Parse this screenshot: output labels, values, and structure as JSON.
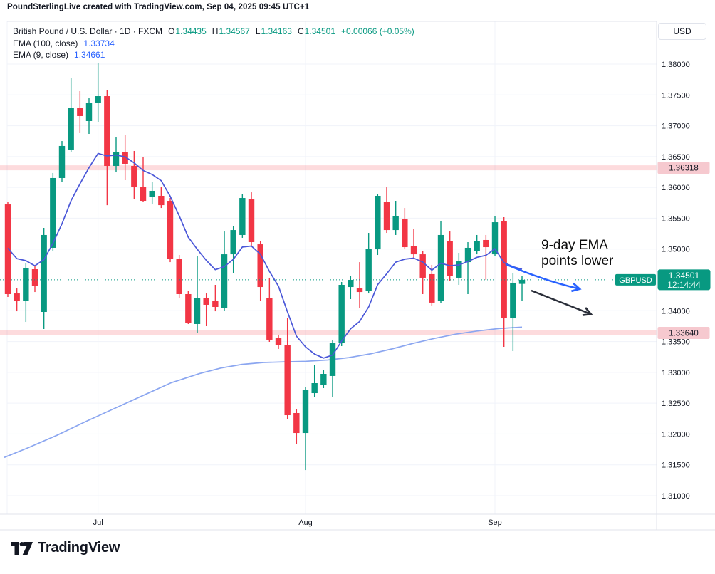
{
  "header": {
    "text": "PoundSterlingLive created with TradingView.com, Sep 04, 2025 09:45 UTC+1"
  },
  "legend": {
    "title": "British Pound / U.S. Dollar · 1D · FXCM",
    "o_label": "O",
    "o": "1.34435",
    "h_label": "H",
    "h": "1.34567",
    "l_label": "L",
    "l": "1.34163",
    "c_label": "C",
    "c": "1.34501",
    "change": "+0.00066 (+0.05%)",
    "ema100_label": "EMA (100, close)",
    "ema100_value": "1.33734",
    "ema9_label": "EMA (9, close)",
    "ema9_value": "1.34661"
  },
  "annotation": {
    "line1": "9-day EMA",
    "line2": "points lower"
  },
  "price_axis": {
    "currency": "USD",
    "ticks": [
      {
        "price": 1.38,
        "label": "1.38000"
      },
      {
        "price": 1.375,
        "label": "1.37500"
      },
      {
        "price": 1.37,
        "label": "1.37000"
      },
      {
        "price": 1.365,
        "label": "1.36500"
      },
      {
        "price": 1.36,
        "label": "1.36000"
      },
      {
        "price": 1.355,
        "label": "1.35500"
      },
      {
        "price": 1.35,
        "label": "1.35000"
      },
      {
        "price": 1.34,
        "label": "1.34000"
      },
      {
        "price": 1.335,
        "label": "1.33500"
      },
      {
        "price": 1.33,
        "label": "1.33000"
      },
      {
        "price": 1.325,
        "label": "1.32500"
      },
      {
        "price": 1.32,
        "label": "1.32000"
      },
      {
        "price": 1.315,
        "label": "1.31500"
      },
      {
        "price": 1.31,
        "label": "1.31000"
      }
    ],
    "level_tags": [
      {
        "price": 1.36318,
        "label": "1.36318"
      },
      {
        "price": 1.3364,
        "label": "1.33640"
      }
    ],
    "last_price_tag": {
      "symbol": "GBPUSD",
      "price_label": "1.34501",
      "countdown": "12:14:44"
    }
  },
  "time_axis": {
    "labels": [
      {
        "text": "Jul",
        "candle_index": 10
      },
      {
        "text": "Aug",
        "candle_index": 33
      },
      {
        "text": "Sep",
        "candle_index": 54
      }
    ]
  },
  "footer": {
    "brand": "TradingView"
  },
  "chart_data": {
    "type": "candlestick",
    "symbol": "GBPUSD",
    "interval": "1D",
    "title": "British Pound / U.S. Dollar",
    "y_axis": {
      "min": 1.31,
      "max": 1.38,
      "tick_step": 0.005
    },
    "last_price": 1.34501,
    "levels": [
      1.36318,
      1.3364
    ],
    "candles": [
      [
        1.35724,
        1.3577,
        1.34223,
        1.34269
      ],
      [
        1.3428,
        1.34361,
        1.33991,
        1.34165
      ],
      [
        1.34165,
        1.34766,
        1.33818,
        1.34685
      ],
      [
        1.34673,
        1.34731,
        1.34303,
        1.34396
      ],
      [
        1.3398,
        1.35343,
        1.33703,
        1.35228
      ],
      [
        1.3502,
        1.36233,
        1.34973,
        1.36152
      ],
      [
        1.36152,
        1.36752,
        1.36094,
        1.36672
      ],
      [
        1.36614,
        1.37769,
        1.36579,
        1.37284
      ],
      [
        1.37284,
        1.37561,
        1.3688,
        1.37157
      ],
      [
        1.37076,
        1.37445,
        1.36868,
        1.37365
      ],
      [
        1.37365,
        1.38023,
        1.37053,
        1.3748
      ],
      [
        1.3748,
        1.37572,
        1.35712,
        1.36348
      ],
      [
        1.36348,
        1.3681,
        1.36244,
        1.36579
      ],
      [
        1.36579,
        1.36845,
        1.36117,
        1.36383
      ],
      [
        1.36348,
        1.36591,
        1.35805,
        1.36002
      ],
      [
        1.36013,
        1.36498,
        1.3577,
        1.35782
      ],
      [
        1.3584,
        1.36094,
        1.35724,
        1.35944
      ],
      [
        1.35863,
        1.36013,
        1.35666,
        1.35712
      ],
      [
        1.35782,
        1.35828,
        1.34788,
        1.34846
      ],
      [
        1.34846,
        1.34904,
        1.34211,
        1.34269
      ],
      [
        1.34269,
        1.34326,
        1.33784,
        1.33807
      ],
      [
        1.33784,
        1.34881,
        1.33645,
        1.34211
      ],
      [
        1.34211,
        1.3428,
        1.33749,
        1.34096
      ],
      [
        1.34154,
        1.34419,
        1.33991,
        1.34061
      ],
      [
        1.34049,
        1.35285,
        1.34003,
        1.34915
      ],
      [
        1.34915,
        1.35377,
        1.34615,
        1.35308
      ],
      [
        1.35228,
        1.35886,
        1.35182,
        1.35828
      ],
      [
        1.35805,
        1.3592,
        1.35054,
        1.35112
      ],
      [
        1.35077,
        1.35135,
        1.34165,
        1.34384
      ],
      [
        1.34211,
        1.34535,
        1.33495,
        1.3353
      ],
      [
        1.33553,
        1.33611,
        1.3338,
        1.33438
      ],
      [
        1.33438,
        1.33876,
        1.32248,
        1.32305
      ],
      [
        1.3234,
        1.32398,
        1.31843,
        1.32016
      ],
      [
        1.32016,
        1.32767,
        1.31415,
        1.32721
      ],
      [
        1.32663,
        1.33114,
        1.32605,
        1.32825
      ],
      [
        1.32802,
        1.33033,
        1.32744,
        1.32975
      ],
      [
        1.32941,
        1.33518,
        1.32605,
        1.33472
      ],
      [
        1.33472,
        1.34465,
        1.33426,
        1.34419
      ],
      [
        1.34384,
        1.34558,
        1.34188,
        1.345
      ],
      [
        1.34361,
        1.34788,
        1.34038,
        1.34303
      ],
      [
        1.34326,
        1.35262,
        1.3428,
        1.35008
      ],
      [
        1.34996,
        1.35886,
        1.34904,
        1.35863
      ],
      [
        1.3577,
        1.36001,
        1.35262,
        1.35308
      ],
      [
        1.35308,
        1.35782,
        1.35228,
        1.35539
      ],
      [
        1.35493,
        1.35666,
        1.34996,
        1.35031
      ],
      [
        1.35054,
        1.3532,
        1.34846,
        1.34915
      ],
      [
        1.34915,
        1.34973,
        1.34269,
        1.34535
      ],
      [
        1.34593,
        1.34743,
        1.34073,
        1.34131
      ],
      [
        1.34154,
        1.35459,
        1.34119,
        1.35228
      ],
      [
        1.35135,
        1.35285,
        1.34477,
        1.34558
      ],
      [
        1.34535,
        1.34939,
        1.34419,
        1.348
      ],
      [
        1.34788,
        1.35112,
        1.34269,
        1.3502
      ],
      [
        1.34962,
        1.35228,
        1.34915,
        1.35135
      ],
      [
        1.35147,
        1.35228,
        1.345,
        1.35031
      ],
      [
        1.34915,
        1.35528,
        1.34881,
        1.35435
      ],
      [
        1.35447,
        1.35516,
        1.33414,
        1.33876
      ],
      [
        1.33876,
        1.34615,
        1.33345,
        1.34454
      ],
      [
        1.34435,
        1.34567,
        1.34163,
        1.34501
      ]
    ],
    "ema9": {
      "period": 9,
      "seed": 1.352,
      "value": 1.34661
    },
    "ema100": {
      "period": 100,
      "value": 1.33734,
      "path": [
        [
          6,
          1.3162
        ],
        [
          40,
          1.3178
        ],
        [
          80,
          1.3198
        ],
        [
          120,
          1.322
        ],
        [
          160,
          1.3241
        ],
        [
          200,
          1.3262
        ],
        [
          240,
          1.3283
        ],
        [
          280,
          1.3298
        ],
        [
          310,
          1.3307
        ],
        [
          340,
          1.3313
        ],
        [
          370,
          1.3316
        ],
        [
          400,
          1.3317
        ],
        [
          430,
          1.3318
        ],
        [
          460,
          1.332
        ],
        [
          490,
          1.3324
        ],
        [
          520,
          1.333
        ],
        [
          550,
          1.3338
        ],
        [
          580,
          1.3347
        ],
        [
          610,
          1.3355
        ],
        [
          640,
          1.3362
        ],
        [
          670,
          1.3367
        ],
        [
          700,
          1.3371
        ],
        [
          733,
          1.33734
        ]
      ]
    },
    "drawings": {
      "blue_arrow": {
        "path": [
          [
            710,
            371
          ],
          [
            752,
            389
          ],
          [
            786,
            399
          ],
          [
            811,
            405
          ]
        ]
      },
      "black_arrow": {
        "from": [
          746,
          408
        ],
        "to": [
          827,
          440
        ]
      }
    }
  },
  "colors": {
    "up": "#089981",
    "down": "#f23645",
    "ema9": "#4a57d8",
    "ema100": "#8ba6f0",
    "arrow_blue": "#2962ff",
    "arrow_black": "#2a2e39",
    "band": "#f23645",
    "tag_pink": "#f6c9cf",
    "grid": "#f0f3fa",
    "border": "#e0e3eb",
    "text": "#131722",
    "tag_teal": "#089981"
  }
}
